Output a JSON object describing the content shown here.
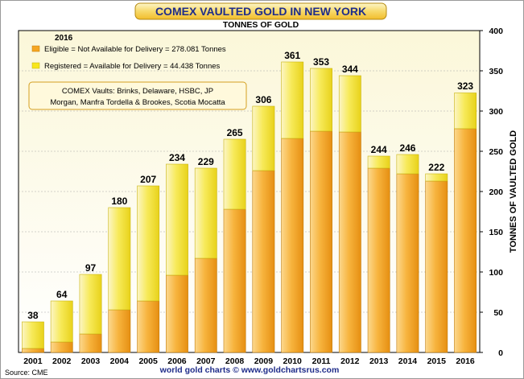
{
  "chart_data": {
    "type": "bar",
    "title": "COMEX VAULTED GOLD IN NEW YORK",
    "subtitle": "TONNES OF GOLD",
    "ylabel": "TONNES OF VAULTED GOLD",
    "xlabel": "",
    "ylim": [
      0,
      400
    ],
    "yticks": [
      0,
      50,
      100,
      150,
      200,
      250,
      300,
      350,
      400
    ],
    "stacked": true,
    "grid": true,
    "categories": [
      "2001",
      "2002",
      "2003",
      "2004",
      "2005",
      "2006",
      "2007",
      "2008",
      "2009",
      "2010",
      "2011",
      "2012",
      "2013",
      "2014",
      "2015",
      "2016"
    ],
    "totals": [
      38,
      64,
      97,
      180,
      207,
      234,
      229,
      265,
      306,
      361,
      353,
      344,
      244,
      246,
      222,
      323
    ],
    "total_labels": [
      "38",
      "64",
      "97",
      "180",
      "207",
      "234",
      "229",
      "265",
      "306",
      "361",
      "353",
      "344",
      "244",
      "246",
      "222",
      "323"
    ],
    "series": [
      {
        "key": "eligible",
        "values": [
          5,
          13,
          23,
          53,
          64,
          96,
          117,
          178,
          226,
          266,
          275,
          274,
          229,
          222,
          213,
          278.081
        ],
        "color": "#f5a623"
      },
      {
        "key": "registered",
        "values": [
          33,
          51,
          74,
          127,
          143,
          138,
          112,
          87,
          80,
          95,
          78,
          70,
          15,
          24,
          9,
          44.438
        ],
        "color": "#f7e61b"
      }
    ],
    "legend": {
      "heading": "2016",
      "entries": [
        {
          "text": "Eligible = Not Available for Delivery = 278.081 Tonnes",
          "color": "#f5a623"
        },
        {
          "text": "Registered = Available for Delivery = 44.438 Tonnes",
          "color": "#f7e61b"
        }
      ],
      "position": "top-left"
    },
    "annotation": {
      "line1": "COMEX Vaults: Brinks, Delaware, HSBC, JP",
      "line2": "Morgan, Manfra Tordella & Brookes, Scotia Mocatta"
    },
    "footer": {
      "credit": "world gold charts © www.goldchartsrus.com",
      "source": "Source: CME"
    }
  }
}
